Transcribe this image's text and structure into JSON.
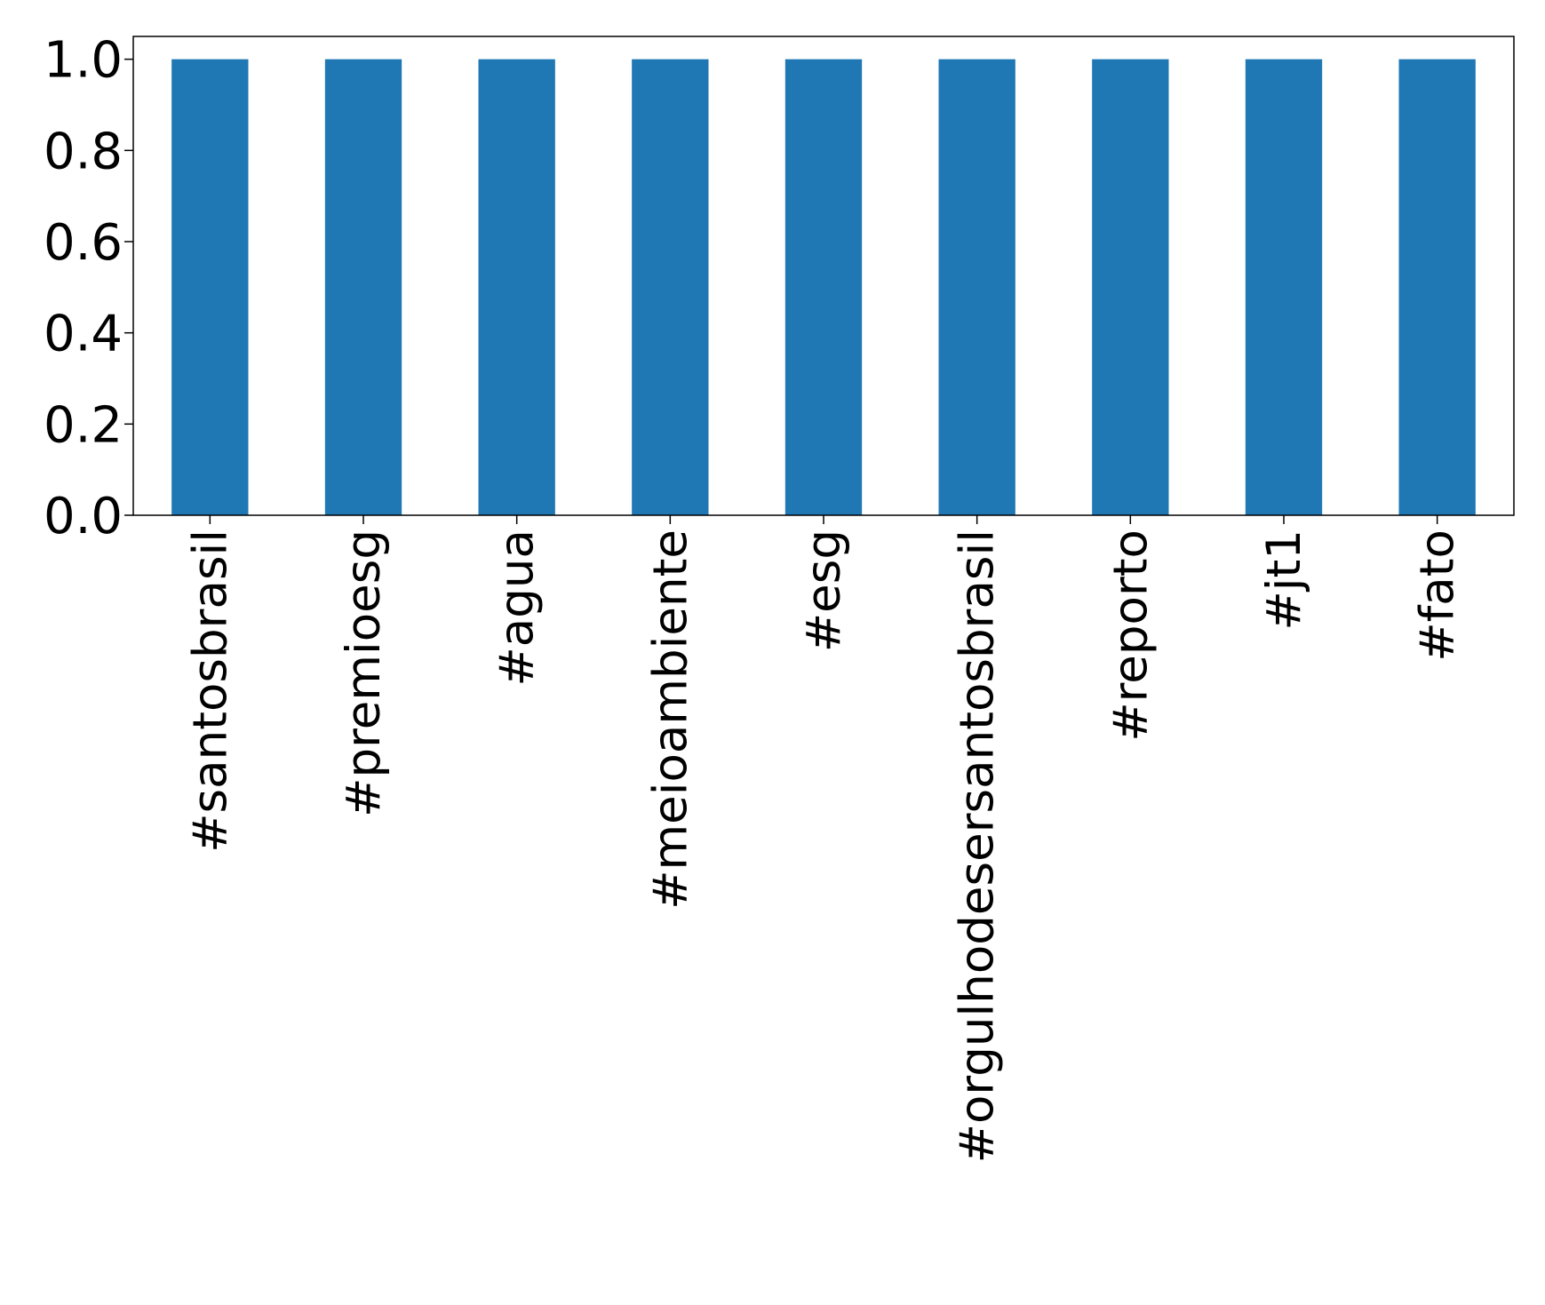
{
  "chart_data": {
    "type": "bar",
    "categories": [
      "#santosbrasil",
      "#premioesg",
      "#agua",
      "#meioambiente",
      "#esg",
      "#orgulhodesersantosbrasil",
      "#reporto",
      "#jt1",
      "#fato"
    ],
    "values": [
      1.0,
      1.0,
      1.0,
      1.0,
      1.0,
      1.0,
      1.0,
      1.0,
      1.0
    ],
    "ylim": [
      0,
      1.05
    ],
    "yticks": [
      0.0,
      0.2,
      0.4,
      0.6,
      0.8,
      1.0
    ],
    "ytick_labels": [
      "0.0",
      "0.2",
      "0.4",
      "0.6",
      "0.8",
      "1.0"
    ],
    "grid": false,
    "legend": false,
    "bar_color": "#1f77b4",
    "title": "",
    "xlabel": "",
    "ylabel": ""
  }
}
